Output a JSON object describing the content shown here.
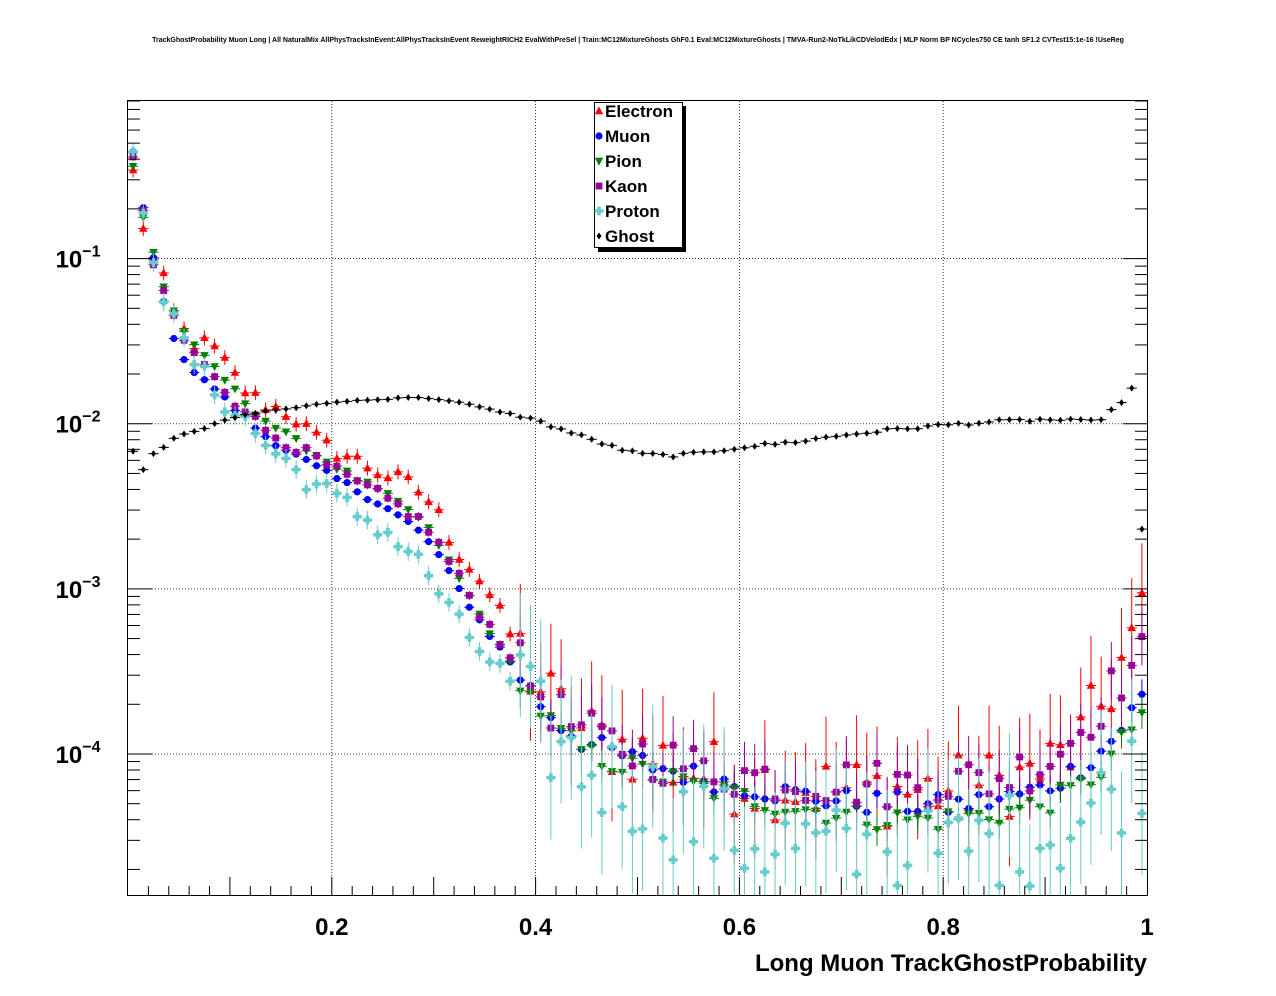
{
  "chart_data": {
    "type": "scatter",
    "title": "TrackGhostProbability Muon Long | All NaturalMix AllPhysTracksInEvent:AllPhysTracksInEvent ReweightRICH2 EvalWithPreSel | Train:MC12MixtureGhosts GhF0.1 Eval:MC12MixtureGhosts | TMVA-Run2-NoTkLikCDVelodEdx | MLP Norm BP NCycles750 CE tanh SF1.2 CVTest15:1e-16 !UseReg",
    "xlabel": "Long Muon TrackGhostProbability",
    "ylabel": "",
    "xlim": [
      0,
      1
    ],
    "ylim": [
      1.4e-05,
      0.9
    ],
    "yscale": "log",
    "grid": true,
    "legend_position": "top-center",
    "x_ticks": [
      {
        "value": 0.2,
        "label": "0.2"
      },
      {
        "value": 0.4,
        "label": "0.4"
      },
      {
        "value": 0.6,
        "label": "0.6"
      },
      {
        "value": 0.8,
        "label": "0.8"
      },
      {
        "value": 1.0,
        "label": "1"
      }
    ],
    "y_ticks": [
      {
        "value": 0.1,
        "mantissa": "10",
        "exponent": "−1"
      },
      {
        "value": 0.01,
        "mantissa": "10",
        "exponent": "−2"
      },
      {
        "value": 0.001,
        "mantissa": "10",
        "exponent": "−3"
      },
      {
        "value": 0.0001,
        "mantissa": "10",
        "exponent": "−4"
      }
    ],
    "series": [
      {
        "name": "Electron",
        "color": "#ff0000",
        "marker": "triangle-up",
        "anchors": [
          [
            0.005,
            0.33
          ],
          [
            0.015,
            0.16
          ],
          [
            0.025,
            0.095
          ],
          [
            0.035,
            0.072
          ],
          [
            0.045,
            0.046
          ],
          [
            0.055,
            0.036
          ],
          [
            0.065,
            0.031
          ],
          [
            0.075,
            0.03
          ],
          [
            0.085,
            0.028
          ],
          [
            0.1,
            0.021
          ],
          [
            0.115,
            0.016
          ],
          [
            0.13,
            0.0135
          ],
          [
            0.16,
            0.0115
          ],
          [
            0.19,
            0.0075
          ],
          [
            0.22,
            0.0062
          ],
          [
            0.25,
            0.005
          ],
          [
            0.28,
            0.0042
          ],
          [
            0.3,
            0.0032
          ],
          [
            0.32,
            0.0018
          ],
          [
            0.35,
            0.00105
          ],
          [
            0.38,
            0.00047
          ],
          [
            0.4,
            0.00028
          ],
          [
            0.42,
            0.00019
          ],
          [
            0.45,
            0.00013
          ],
          [
            0.5,
            0.000105
          ],
          [
            0.55,
            8e-05
          ],
          [
            0.6,
            7e-05
          ],
          [
            0.65,
            6.5e-05
          ],
          [
            0.7,
            6e-05
          ],
          [
            0.75,
            6e-05
          ],
          [
            0.8,
            6e-05
          ],
          [
            0.85,
            6.5e-05
          ],
          [
            0.9,
            8e-05
          ],
          [
            0.93,
            0.00011
          ],
          [
            0.96,
            0.00022
          ],
          [
            0.98,
            0.00042
          ],
          [
            0.995,
            0.00065
          ]
        ],
        "jitter": 0.45,
        "yerr": 0.6
      },
      {
        "name": "Muon",
        "color": "#0000ff",
        "marker": "circle",
        "anchors": [
          [
            0.005,
            0.44
          ],
          [
            0.015,
            0.2
          ],
          [
            0.025,
            0.105
          ],
          [
            0.035,
            0.053
          ],
          [
            0.045,
            0.034
          ],
          [
            0.055,
            0.025
          ],
          [
            0.065,
            0.0205
          ],
          [
            0.075,
            0.018
          ],
          [
            0.085,
            0.0165
          ],
          [
            0.1,
            0.013
          ],
          [
            0.115,
            0.011
          ],
          [
            0.13,
            0.0088
          ],
          [
            0.16,
            0.0067
          ],
          [
            0.19,
            0.0052
          ],
          [
            0.22,
            0.0041
          ],
          [
            0.25,
            0.0032
          ],
          [
            0.28,
            0.0024
          ],
          [
            0.3,
            0.0018
          ],
          [
            0.32,
            0.0011
          ],
          [
            0.35,
            0.00058
          ],
          [
            0.38,
            0.00033
          ],
          [
            0.4,
            0.00022
          ],
          [
            0.42,
            0.00016
          ],
          [
            0.45,
            0.000115
          ],
          [
            0.5,
            9e-05
          ],
          [
            0.55,
            7.5e-05
          ],
          [
            0.6,
            6.5e-05
          ],
          [
            0.65,
            5.7e-05
          ],
          [
            0.7,
            5.2e-05
          ],
          [
            0.75,
            5e-05
          ],
          [
            0.8,
            4.8e-05
          ],
          [
            0.85,
            5.2e-05
          ],
          [
            0.9,
            6.2e-05
          ],
          [
            0.93,
            8e-05
          ],
          [
            0.96,
            0.00011
          ],
          [
            0.98,
            0.00016
          ],
          [
            0.995,
            0.00022
          ]
        ],
        "jitter": 0.15,
        "yerr": 0.18
      },
      {
        "name": "Pion",
        "color": "#008000",
        "marker": "triangle-down",
        "anchors": [
          [
            0.005,
            0.36
          ],
          [
            0.015,
            0.18
          ],
          [
            0.025,
            0.11
          ],
          [
            0.035,
            0.068
          ],
          [
            0.045,
            0.048
          ],
          [
            0.055,
            0.037
          ],
          [
            0.065,
            0.029
          ],
          [
            0.075,
            0.025
          ],
          [
            0.085,
            0.022
          ],
          [
            0.1,
            0.017
          ],
          [
            0.115,
            0.0135
          ],
          [
            0.13,
            0.011
          ],
          [
            0.16,
            0.0082
          ],
          [
            0.19,
            0.0062
          ],
          [
            0.22,
            0.0048
          ],
          [
            0.25,
            0.0038
          ],
          [
            0.28,
            0.0029
          ],
          [
            0.3,
            0.0021
          ],
          [
            0.32,
            0.0013
          ],
          [
            0.35,
            0.00062
          ],
          [
            0.38,
            0.00032
          ],
          [
            0.4,
            0.0002
          ],
          [
            0.42,
            0.00014
          ],
          [
            0.45,
            0.0001
          ],
          [
            0.5,
            8e-05
          ],
          [
            0.55,
            6.5e-05
          ],
          [
            0.6,
            5.5e-05
          ],
          [
            0.65,
            4.8e-05
          ],
          [
            0.7,
            4.3e-05
          ],
          [
            0.75,
            4e-05
          ],
          [
            0.8,
            4e-05
          ],
          [
            0.85,
            4.3e-05
          ],
          [
            0.9,
            5e-05
          ],
          [
            0.93,
            6e-05
          ],
          [
            0.96,
            8.5e-05
          ],
          [
            0.98,
            0.00013
          ],
          [
            0.995,
            0.00018
          ]
        ],
        "jitter": 0.15,
        "yerr": 0.2
      },
      {
        "name": "Kaon",
        "color": "#990099",
        "marker": "square",
        "anchors": [
          [
            0.005,
            0.38
          ],
          [
            0.015,
            0.19
          ],
          [
            0.025,
            0.092
          ],
          [
            0.035,
            0.062
          ],
          [
            0.045,
            0.045
          ],
          [
            0.055,
            0.032
          ],
          [
            0.065,
            0.026
          ],
          [
            0.075,
            0.022
          ],
          [
            0.085,
            0.02
          ],
          [
            0.1,
            0.0145
          ],
          [
            0.115,
            0.0125
          ],
          [
            0.13,
            0.0095
          ],
          [
            0.16,
            0.0075
          ],
          [
            0.19,
            0.0058
          ],
          [
            0.22,
            0.0045
          ],
          [
            0.25,
            0.0036
          ],
          [
            0.28,
            0.0028
          ],
          [
            0.3,
            0.0021
          ],
          [
            0.32,
            0.0013
          ],
          [
            0.35,
            0.00065
          ],
          [
            0.38,
            0.00037
          ],
          [
            0.4,
            0.00025
          ],
          [
            0.42,
            0.00018
          ],
          [
            0.45,
            0.00013
          ],
          [
            0.5,
            0.0001
          ],
          [
            0.55,
            8.5e-05
          ],
          [
            0.6,
            7.5e-05
          ],
          [
            0.65,
            7e-05
          ],
          [
            0.7,
            6.8e-05
          ],
          [
            0.75,
            6.5e-05
          ],
          [
            0.8,
            6.8e-05
          ],
          [
            0.85,
            7e-05
          ],
          [
            0.9,
            9e-05
          ],
          [
            0.93,
            0.00013
          ],
          [
            0.96,
            0.00022
          ],
          [
            0.98,
            0.00032
          ],
          [
            0.995,
            0.00038
          ]
        ],
        "jitter": 0.3,
        "yerr": 0.35
      },
      {
        "name": "Proton",
        "color": "#66cccc",
        "marker": "cross",
        "anchors": [
          [
            0.005,
            0.4
          ],
          [
            0.015,
            0.21
          ],
          [
            0.025,
            0.11
          ],
          [
            0.035,
            0.06
          ],
          [
            0.045,
            0.04
          ],
          [
            0.055,
            0.03
          ],
          [
            0.065,
            0.024
          ],
          [
            0.075,
            0.019
          ],
          [
            0.085,
            0.016
          ],
          [
            0.1,
            0.0125
          ],
          [
            0.115,
            0.0105
          ],
          [
            0.13,
            0.008
          ],
          [
            0.16,
            0.0055
          ],
          [
            0.19,
            0.004
          ],
          [
            0.22,
            0.003
          ],
          [
            0.25,
            0.0023
          ],
          [
            0.28,
            0.0016
          ],
          [
            0.3,
            0.0011
          ],
          [
            0.32,
            0.00065
          ],
          [
            0.35,
            0.0004
          ],
          [
            0.38,
            0.00025
          ],
          [
            0.4,
            0.00016
          ],
          [
            0.42,
            0.00011
          ],
          [
            0.45,
            8e-05
          ],
          [
            0.5,
            6e-05
          ],
          [
            0.55,
            4e-05
          ],
          [
            0.6,
            3e-05
          ],
          [
            0.65,
            2.8e-05
          ],
          [
            0.7,
            2.5e-05
          ],
          [
            0.75,
            2.2e-05
          ],
          [
            0.8,
            2.5e-05
          ],
          [
            0.85,
            3e-05
          ],
          [
            0.9,
            3.2e-05
          ],
          [
            0.93,
            3.8e-05
          ],
          [
            0.96,
            5.5e-05
          ],
          [
            0.98,
            7e-05
          ],
          [
            0.995,
            8.5e-05
          ]
        ],
        "jitter": 0.6,
        "yerr": 0.75
      },
      {
        "name": "Ghost",
        "color": "#000000",
        "marker": "diamond",
        "anchors": [
          [
            0.005,
            0.0068
          ],
          [
            0.015,
            0.0053
          ],
          [
            0.025,
            0.0066
          ],
          [
            0.035,
            0.0072
          ],
          [
            0.045,
            0.0082
          ],
          [
            0.055,
            0.0087
          ],
          [
            0.065,
            0.009
          ],
          [
            0.075,
            0.0093
          ],
          [
            0.085,
            0.01
          ],
          [
            0.1,
            0.0107
          ],
          [
            0.115,
            0.0113
          ],
          [
            0.13,
            0.0118
          ],
          [
            0.16,
            0.0124
          ],
          [
            0.19,
            0.0132
          ],
          [
            0.22,
            0.0138
          ],
          [
            0.25,
            0.014
          ],
          [
            0.27,
            0.0145
          ],
          [
            0.3,
            0.0142
          ],
          [
            0.33,
            0.0133
          ],
          [
            0.36,
            0.012
          ],
          [
            0.39,
            0.011
          ],
          [
            0.42,
            0.0095
          ],
          [
            0.45,
            0.0082
          ],
          [
            0.48,
            0.0071
          ],
          [
            0.5,
            0.0066
          ],
          [
            0.53,
            0.0064
          ],
          [
            0.56,
            0.0066
          ],
          [
            0.6,
            0.0072
          ],
          [
            0.65,
            0.0077
          ],
          [
            0.7,
            0.0085
          ],
          [
            0.75,
            0.0092
          ],
          [
            0.8,
            0.0098
          ],
          [
            0.85,
            0.0103
          ],
          [
            0.9,
            0.0106
          ],
          [
            0.93,
            0.0104
          ],
          [
            0.95,
            0.0103
          ],
          [
            0.97,
            0.0125
          ],
          [
            0.985,
            0.0163
          ],
          [
            0.995,
            0.0178
          ]
        ],
        "jitter": 0.02,
        "yerr": 0.03,
        "last_point": [
          0.9995,
          0.0023
        ]
      }
    ]
  }
}
